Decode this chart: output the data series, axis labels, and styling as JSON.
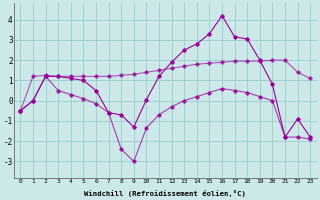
{
  "xlabel": "Windchill (Refroidissement éolien,°C)",
  "x": [
    0,
    1,
    2,
    3,
    4,
    5,
    6,
    7,
    8,
    9,
    10,
    11,
    12,
    13,
    14,
    15,
    16,
    17,
    18,
    19,
    20,
    21,
    22,
    23
  ],
  "line1": [
    -0.5,
    0.0,
    1.2,
    1.2,
    1.1,
    1.0,
    0.5,
    -0.6,
    -0.7,
    -1.3,
    0.05,
    1.2,
    1.9,
    2.5,
    2.8,
    3.3,
    4.2,
    3.15,
    3.05,
    2.0,
    0.8,
    -1.8,
    -0.9,
    -1.8
  ],
  "line2": [
    -0.5,
    1.2,
    1.25,
    1.2,
    1.2,
    1.2,
    1.2,
    1.2,
    1.25,
    1.3,
    1.4,
    1.5,
    1.6,
    1.7,
    1.8,
    1.85,
    1.9,
    1.95,
    1.95,
    1.95,
    2.0,
    2.0,
    1.4,
    1.1
  ],
  "line3": [
    -0.5,
    0.0,
    1.2,
    0.5,
    0.3,
    0.1,
    -0.15,
    -0.6,
    -2.4,
    -3.0,
    -1.35,
    -0.7,
    -0.3,
    0.0,
    0.2,
    0.4,
    0.6,
    0.5,
    0.4,
    0.2,
    0.0,
    -1.8,
    -1.8,
    -1.9
  ],
  "bg_color": "#cce8e8",
  "grid_color": "#99cccc",
  "line_color": "#990099",
  "ylim": [
    -3.8,
    4.8
  ],
  "yticks": [
    -3,
    -2,
    -1,
    0,
    1,
    2,
    3,
    4
  ]
}
